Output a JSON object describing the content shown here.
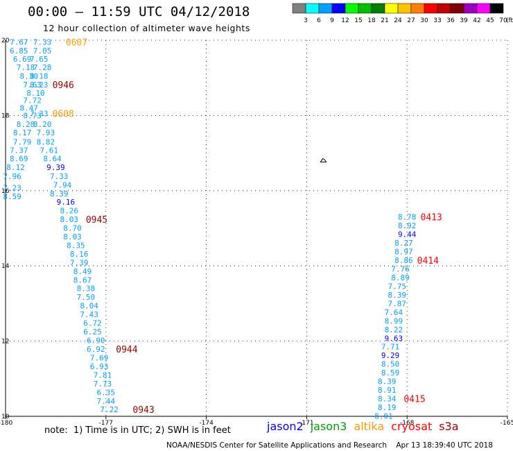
{
  "header": {
    "title": "00:00 – 11:59 UTC 04/12/2018",
    "subtitle": "12 hour collection of altimeter wave heights"
  },
  "colorbar": {
    "unit": "(ft)",
    "levels": [
      {
        "label": "3",
        "color": "#808080"
      },
      {
        "label": "6",
        "color": "#00ffff"
      },
      {
        "label": "9",
        "color": "#00a0ff"
      },
      {
        "label": "12",
        "color": "#0000ff"
      },
      {
        "label": "15",
        "color": "#00ff00"
      },
      {
        "label": "18",
        "color": "#00c000"
      },
      {
        "label": "21",
        "color": "#008000"
      },
      {
        "label": "24",
        "color": "#ffff00"
      },
      {
        "label": "27",
        "color": "#ffc000"
      },
      {
        "label": "30",
        "color": "#ff8000"
      },
      {
        "label": "33",
        "color": "#ff0000"
      },
      {
        "label": "36",
        "color": "#c00000"
      },
      {
        "label": "39",
        "color": "#800000"
      },
      {
        "label": "42",
        "color": "#a000c0"
      },
      {
        "label": "45",
        "color": "#ff00ff"
      },
      {
        "label": "70",
        "color": "#000000"
      }
    ]
  },
  "footer": {
    "note": "note:  1) Time is in UTC; 2) SWH is in feet",
    "credit": "NOAA/NESDIS Center for Satellite Applications and Research    Apr 13 18:39:40 UTC 2018",
    "satellites": [
      {
        "label": "jason2",
        "color": "#0000ff"
      },
      {
        "label": "jason3",
        "color": "#00a000"
      },
      {
        "label": "altika",
        "color": "#ff9900"
      },
      {
        "label": "cryosat",
        "color": "#ff0000"
      },
      {
        "label": "s3a",
        "color": "#990000"
      }
    ]
  },
  "chart_data": {
    "type": "scatter",
    "title": "12 hour collection of altimeter wave heights",
    "xlim": [
      -180,
      -165
    ],
    "ylim": [
      10,
      20
    ],
    "x_ticks": [
      "-180",
      "-177",
      "-174",
      "-171",
      "-168",
      "-165"
    ],
    "y_ticks": [
      "10",
      "12",
      "14",
      "16",
      "18",
      "20"
    ],
    "grid": true,
    "island_marker": {
      "lon": -170.5,
      "lat": 16.8
    },
    "points": [
      {
        "lon": -179.6,
        "lat": 19.95,
        "v": "7.67",
        "c": "#00a0ff"
      },
      {
        "lon": -178.9,
        "lat": 19.95,
        "v": "7.33",
        "c": "#00a0ff"
      },
      {
        "lon": -179.6,
        "lat": 19.72,
        "v": "6.85",
        "c": "#00a0ff"
      },
      {
        "lon": -178.9,
        "lat": 19.72,
        "v": "7.05",
        "c": "#00a0ff"
      },
      {
        "lon": -179.5,
        "lat": 19.5,
        "v": "6.69",
        "c": "#00a0ff"
      },
      {
        "lon": -179.0,
        "lat": 19.5,
        "v": "7.65",
        "c": "#00a0ff"
      },
      {
        "lon": -179.4,
        "lat": 19.28,
        "v": "7.18",
        "c": "#00a0ff"
      },
      {
        "lon": -178.9,
        "lat": 19.28,
        "v": "7.28",
        "c": "#00a0ff"
      },
      {
        "lon": -179.3,
        "lat": 19.05,
        "v": "8.30",
        "c": "#00a0ff"
      },
      {
        "lon": -179.0,
        "lat": 19.05,
        "v": "8.18",
        "c": "#00a0ff"
      },
      {
        "lon": -179.2,
        "lat": 18.82,
        "v": "7.63",
        "c": "#00a0ff"
      },
      {
        "lon": -179.0,
        "lat": 18.82,
        "v": "8.23",
        "c": "#00a0ff"
      },
      {
        "lon": -179.1,
        "lat": 18.6,
        "v": "8.10",
        "c": "#00a0ff"
      },
      {
        "lon": -179.2,
        "lat": 18.4,
        "v": "7.72",
        "c": "#00a0ff"
      },
      {
        "lon": -179.3,
        "lat": 18.2,
        "v": "8.47",
        "c": "#00a0ff"
      },
      {
        "lon": -179.2,
        "lat": 18.0,
        "v": "8.73",
        "c": "#00a0ff"
      },
      {
        "lon": -179.0,
        "lat": 18.05,
        "v": "7.33",
        "c": "#00a0ff"
      },
      {
        "lon": -178.9,
        "lat": 17.77,
        "v": "8.20",
        "c": "#00a0ff"
      },
      {
        "lon": -179.4,
        "lat": 17.77,
        "v": "8.28",
        "c": "#00a0ff"
      },
      {
        "lon": -179.5,
        "lat": 17.55,
        "v": "8.17",
        "c": "#00a0ff"
      },
      {
        "lon": -178.8,
        "lat": 17.55,
        "v": "7.93",
        "c": "#00a0ff"
      },
      {
        "lon": -179.5,
        "lat": 17.3,
        "v": "7.79",
        "c": "#00a0ff"
      },
      {
        "lon": -178.8,
        "lat": 17.3,
        "v": "8.82",
        "c": "#00a0ff"
      },
      {
        "lon": -179.6,
        "lat": 17.08,
        "v": "7.37",
        "c": "#00a0ff"
      },
      {
        "lon": -178.7,
        "lat": 17.08,
        "v": "7.61",
        "c": "#00a0ff"
      },
      {
        "lon": -179.6,
        "lat": 16.85,
        "v": "8.69",
        "c": "#00a0ff"
      },
      {
        "lon": -178.6,
        "lat": 16.85,
        "v": "8.64",
        "c": "#00a0ff"
      },
      {
        "lon": -179.7,
        "lat": 16.62,
        "v": "8.12",
        "c": "#00a0ff"
      },
      {
        "lon": -178.5,
        "lat": 16.62,
        "v": "9.39",
        "c": "#0000ff"
      },
      {
        "lon": -179.8,
        "lat": 16.38,
        "v": "7.96",
        "c": "#00a0ff"
      },
      {
        "lon": -178.4,
        "lat": 16.38,
        "v": "7.33",
        "c": "#00a0ff"
      },
      {
        "lon": -178.3,
        "lat": 16.15,
        "v": "7.94",
        "c": "#00a0ff"
      },
      {
        "lon": -179.8,
        "lat": 16.08,
        "v": "7.23",
        "c": "#00a0ff"
      },
      {
        "lon": -178.4,
        "lat": 15.92,
        "v": "8.39",
        "c": "#00a0ff"
      },
      {
        "lon": -179.8,
        "lat": 15.85,
        "v": "8.59",
        "c": "#00a0ff"
      },
      {
        "lon": -178.2,
        "lat": 15.7,
        "v": "9.16",
        "c": "#0000ff"
      },
      {
        "lon": -178.1,
        "lat": 15.47,
        "v": "8.26",
        "c": "#00a0ff"
      },
      {
        "lon": -178.1,
        "lat": 15.24,
        "v": "8.03",
        "c": "#00a0ff"
      },
      {
        "lon": -178.0,
        "lat": 15.01,
        "v": "8.70",
        "c": "#00a0ff"
      },
      {
        "lon": -178.0,
        "lat": 14.78,
        "v": "8.03",
        "c": "#00a0ff"
      },
      {
        "lon": -177.9,
        "lat": 14.55,
        "v": "8.35",
        "c": "#00a0ff"
      },
      {
        "lon": -177.8,
        "lat": 14.32,
        "v": "8.16",
        "c": "#00a0ff"
      },
      {
        "lon": -177.8,
        "lat": 14.09,
        "v": "7.39",
        "c": "#00a0ff"
      },
      {
        "lon": -177.7,
        "lat": 13.86,
        "v": "8.49",
        "c": "#00a0ff"
      },
      {
        "lon": -177.7,
        "lat": 13.63,
        "v": "8.67",
        "c": "#00a0ff"
      },
      {
        "lon": -177.6,
        "lat": 13.4,
        "v": "8.38",
        "c": "#00a0ff"
      },
      {
        "lon": -177.6,
        "lat": 13.17,
        "v": "7.50",
        "c": "#00a0ff"
      },
      {
        "lon": -177.5,
        "lat": 12.94,
        "v": "8.04",
        "c": "#00a0ff"
      },
      {
        "lon": -177.5,
        "lat": 12.71,
        "v": "7.43",
        "c": "#00a0ff"
      },
      {
        "lon": -177.4,
        "lat": 12.48,
        "v": "6.72",
        "c": "#00a0ff"
      },
      {
        "lon": -177.4,
        "lat": 12.25,
        "v": "6.25",
        "c": "#00a0ff"
      },
      {
        "lon": -177.3,
        "lat": 12.02,
        "v": "6.90",
        "c": "#00a0ff"
      },
      {
        "lon": -177.3,
        "lat": 11.79,
        "v": "6.92",
        "c": "#00a0ff"
      },
      {
        "lon": -177.2,
        "lat": 11.56,
        "v": "7.69",
        "c": "#00a0ff"
      },
      {
        "lon": -177.2,
        "lat": 11.33,
        "v": "6.93",
        "c": "#00a0ff"
      },
      {
        "lon": -177.1,
        "lat": 11.1,
        "v": "7.81",
        "c": "#00a0ff"
      },
      {
        "lon": -177.1,
        "lat": 10.87,
        "v": "7.73",
        "c": "#00a0ff"
      },
      {
        "lon": -177.0,
        "lat": 10.64,
        "v": "6.35",
        "c": "#00a0ff"
      },
      {
        "lon": -177.0,
        "lat": 10.41,
        "v": "7.44",
        "c": "#00a0ff"
      },
      {
        "lon": -176.9,
        "lat": 10.18,
        "v": "7.22",
        "c": "#00a0ff"
      },
      {
        "lon": -168.0,
        "lat": 15.3,
        "v": "8.78",
        "c": "#00a0ff"
      },
      {
        "lon": -168.0,
        "lat": 15.07,
        "v": "8.92",
        "c": "#00a0ff"
      },
      {
        "lon": -168.0,
        "lat": 14.84,
        "v": "9.44",
        "c": "#0000ff"
      },
      {
        "lon": -168.1,
        "lat": 14.61,
        "v": "8.27",
        "c": "#00a0ff"
      },
      {
        "lon": -168.1,
        "lat": 14.38,
        "v": "8.97",
        "c": "#00a0ff"
      },
      {
        "lon": -168.1,
        "lat": 14.15,
        "v": "8.86",
        "c": "#00a0ff"
      },
      {
        "lon": -168.2,
        "lat": 13.92,
        "v": "7.76",
        "c": "#00a0ff"
      },
      {
        "lon": -168.2,
        "lat": 13.69,
        "v": "8.89",
        "c": "#00a0ff"
      },
      {
        "lon": -168.3,
        "lat": 13.46,
        "v": "7.75",
        "c": "#00a0ff"
      },
      {
        "lon": -168.3,
        "lat": 13.23,
        "v": "8.39",
        "c": "#00a0ff"
      },
      {
        "lon": -168.3,
        "lat": 13.0,
        "v": "7.87",
        "c": "#00a0ff"
      },
      {
        "lon": -168.4,
        "lat": 12.77,
        "v": "7.64",
        "c": "#00a0ff"
      },
      {
        "lon": -168.4,
        "lat": 12.54,
        "v": "8.99",
        "c": "#00a0ff"
      },
      {
        "lon": -168.4,
        "lat": 12.31,
        "v": "8.22",
        "c": "#00a0ff"
      },
      {
        "lon": -168.4,
        "lat": 12.08,
        "v": "9.63",
        "c": "#0000ff"
      },
      {
        "lon": -168.5,
        "lat": 11.85,
        "v": "7.71",
        "c": "#00a0ff"
      },
      {
        "lon": -168.5,
        "lat": 11.62,
        "v": "9.29",
        "c": "#0000ff"
      },
      {
        "lon": -168.5,
        "lat": 11.39,
        "v": "8.50",
        "c": "#00a0ff"
      },
      {
        "lon": -168.5,
        "lat": 11.16,
        "v": "8.59",
        "c": "#00a0ff"
      },
      {
        "lon": -168.6,
        "lat": 10.93,
        "v": "8.39",
        "c": "#00a0ff"
      },
      {
        "lon": -168.6,
        "lat": 10.7,
        "v": "8.91",
        "c": "#00a0ff"
      },
      {
        "lon": -168.6,
        "lat": 10.47,
        "v": "8.34",
        "c": "#00a0ff"
      },
      {
        "lon": -168.6,
        "lat": 10.24,
        "v": "8.19",
        "c": "#00a0ff"
      },
      {
        "lon": -168.7,
        "lat": 10.01,
        "v": "8.01",
        "c": "#00a0ff"
      }
    ],
    "time_labels": [
      {
        "lon": -178.2,
        "lat": 19.95,
        "t": "0607",
        "c": "#ff9900"
      },
      {
        "lon": -178.6,
        "lat": 18.82,
        "t": "0946",
        "c": "#990000"
      },
      {
        "lon": -178.6,
        "lat": 18.05,
        "t": "0608",
        "c": "#ff9900"
      },
      {
        "lon": -177.6,
        "lat": 15.24,
        "t": "0945",
        "c": "#990000"
      },
      {
        "lon": -176.7,
        "lat": 11.79,
        "t": "0944",
        "c": "#990000"
      },
      {
        "lon": -176.2,
        "lat": 10.18,
        "t": "0943",
        "c": "#990000"
      },
      {
        "lon": -167.6,
        "lat": 15.3,
        "t": "0413",
        "c": "#ff0000"
      },
      {
        "lon": -167.7,
        "lat": 14.15,
        "t": "0414",
        "c": "#ff0000"
      },
      {
        "lon": -168.1,
        "lat": 10.47,
        "t": "0415",
        "c": "#ff0000"
      }
    ]
  }
}
